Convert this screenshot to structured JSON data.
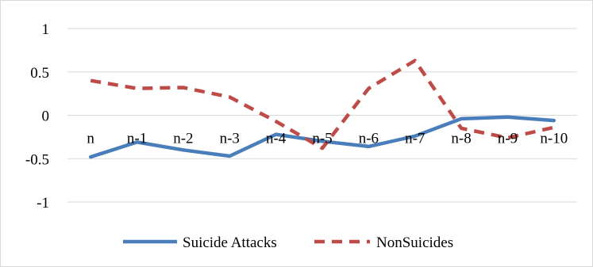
{
  "chart_data": {
    "type": "line",
    "categories": [
      "n",
      "n-1",
      "n-2",
      "n-3",
      "n-4",
      "n-5",
      "n-6",
      "n-7",
      "n-8",
      "n-9",
      "n-10"
    ],
    "series": [
      {
        "name": "Suicide Attacks",
        "color": "#4a7ebb",
        "dash": "solid",
        "values": [
          -0.48,
          -0.31,
          -0.4,
          -0.47,
          -0.22,
          -0.3,
          -0.36,
          -0.24,
          -0.04,
          -0.02,
          -0.06
        ]
      },
      {
        "name": "NonSuicides",
        "color": "#be4b48",
        "dash": "dashed",
        "values": [
          0.4,
          0.31,
          0.32,
          0.21,
          -0.07,
          -0.38,
          0.31,
          0.63,
          -0.15,
          -0.26,
          -0.14
        ]
      }
    ],
    "y_ticks": [
      1,
      0.5,
      0,
      -0.5,
      -1
    ],
    "ylim": [
      -1,
      1
    ],
    "grid": true,
    "legend": "bottom"
  }
}
